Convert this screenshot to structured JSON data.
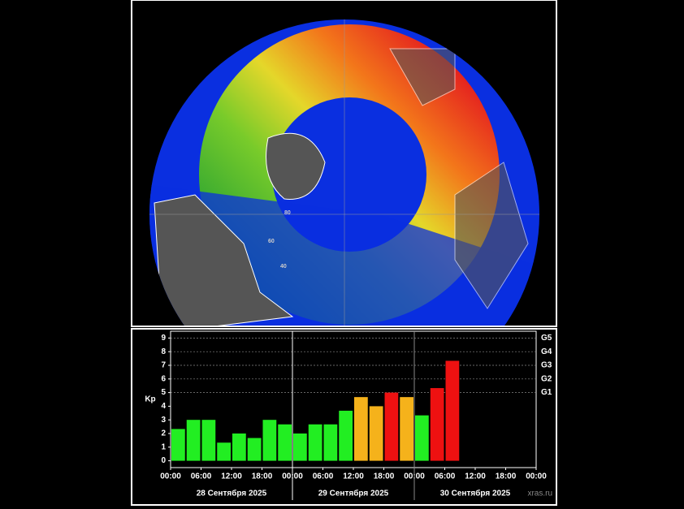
{
  "map": {
    "grid_labels": [
      "80",
      "60",
      "40"
    ]
  },
  "chart_data": {
    "type": "bar",
    "y_label": "Kp",
    "x": [
      0,
      3,
      6,
      9,
      12,
      15,
      18,
      21,
      24,
      27,
      30,
      33,
      36,
      39,
      42,
      45,
      48,
      51,
      54
    ],
    "bar_width": 3,
    "values": [
      2.33,
      3.0,
      3.0,
      1.33,
      2.0,
      1.67,
      3.0,
      2.67,
      2.0,
      2.67,
      2.67,
      3.67,
      4.67,
      4.0,
      5.0,
      4.67,
      3.33,
      5.33,
      7.33
    ],
    "colors": [
      "#22ee22",
      "#22ee22",
      "#22ee22",
      "#22ee22",
      "#22ee22",
      "#22ee22",
      "#22ee22",
      "#22ee22",
      "#22ee22",
      "#22ee22",
      "#22ee22",
      "#22ee22",
      "#f5b21b",
      "#f5b21b",
      "#ee1111",
      "#f5b21b",
      "#22ee22",
      "#ee1111",
      "#ee1111"
    ],
    "xlim": [
      0,
      72
    ],
    "xticks": [
      {
        "value": 0,
        "label": "00:00"
      },
      {
        "value": 6,
        "label": "06:00"
      },
      {
        "value": 12,
        "label": "12:00"
      },
      {
        "value": 18,
        "label": "18:00"
      },
      {
        "value": 24,
        "label": "00:00"
      },
      {
        "value": 30,
        "label": "06:00"
      },
      {
        "value": 36,
        "label": "12:00"
      },
      {
        "value": 42,
        "label": "18:00"
      },
      {
        "value": 48,
        "label": "00:00"
      },
      {
        "value": 54,
        "label": "06:00"
      },
      {
        "value": 60,
        "label": "12:00"
      },
      {
        "value": 66,
        "label": "18:00"
      },
      {
        "value": 72,
        "label": "00:00"
      }
    ],
    "days": [
      "28 Сентября 2025",
      "29 Сентября 2025",
      "30 Сентября 2025"
    ],
    "ylim": [
      -0.5,
      9.5
    ],
    "yticks": [
      0,
      1,
      2,
      3,
      4,
      5,
      6,
      7,
      8,
      9
    ],
    "y2lim": [
      -0.5,
      9.5
    ],
    "y2ticks": [
      {
        "value": 5,
        "label": "G1"
      },
      {
        "value": 6,
        "label": "G2"
      },
      {
        "value": 7,
        "label": "G3"
      },
      {
        "value": 8,
        "label": "G4"
      },
      {
        "value": 9,
        "label": "G5"
      }
    ],
    "grid": true,
    "source": "xras.ru"
  }
}
